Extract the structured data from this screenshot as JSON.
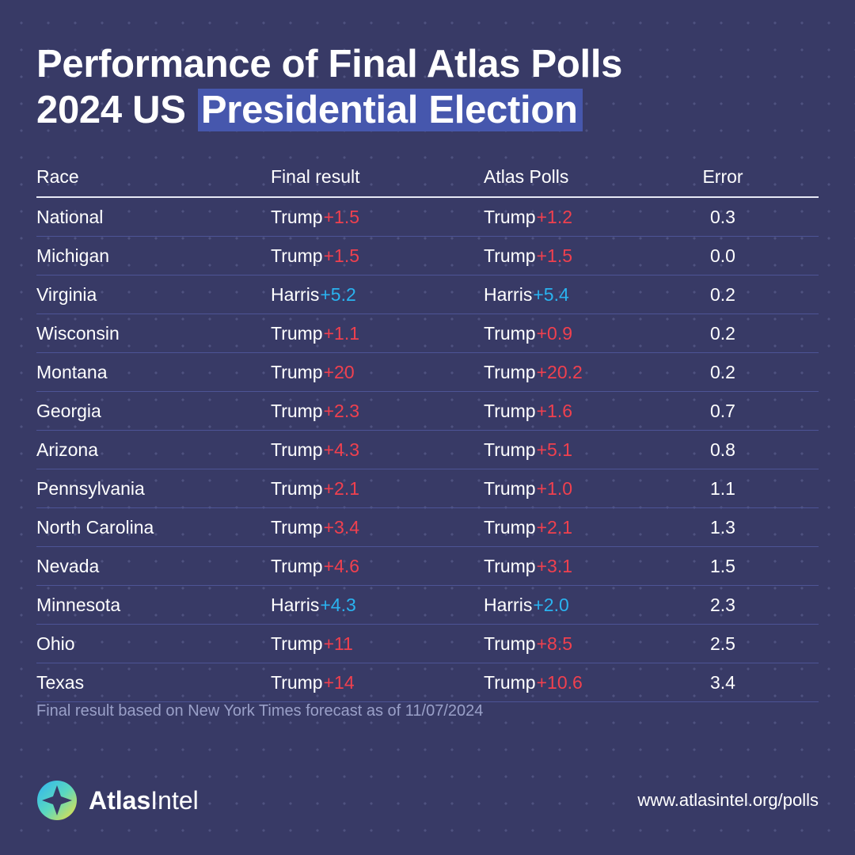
{
  "title": {
    "line1": "Performance of Final Atlas Polls",
    "line2_prefix": "2024 US",
    "line2_highlight": "Presidential Election"
  },
  "table": {
    "headers": {
      "race": "Race",
      "final": "Final result",
      "atlas": "Atlas Polls",
      "error": "Error"
    },
    "rows": [
      {
        "race": "National",
        "final_cand": "Trump",
        "final_margin": "+1.5",
        "atlas_cand": "Trump",
        "atlas_margin": "+1.2",
        "error": "0.3"
      },
      {
        "race": "Michigan",
        "final_cand": "Trump",
        "final_margin": "+1.5",
        "atlas_cand": "Trump",
        "atlas_margin": "+1.5",
        "error": "0.0"
      },
      {
        "race": "Virginia",
        "final_cand": "Harris",
        "final_margin": "+5.2",
        "atlas_cand": "Harris",
        "atlas_margin": "+5.4",
        "error": "0.2"
      },
      {
        "race": "Wisconsin",
        "final_cand": "Trump",
        "final_margin": "+1.1",
        "atlas_cand": "Trump",
        "atlas_margin": "+0.9",
        "error": "0.2"
      },
      {
        "race": "Montana",
        "final_cand": "Trump",
        "final_margin": "+20",
        "atlas_cand": "Trump",
        "atlas_margin": "+20.2",
        "error": "0.2"
      },
      {
        "race": "Georgia",
        "final_cand": "Trump",
        "final_margin": "+2.3",
        "atlas_cand": "Trump",
        "atlas_margin": "+1.6",
        "error": "0.7"
      },
      {
        "race": "Arizona",
        "final_cand": "Trump",
        "final_margin": "+4.3",
        "atlas_cand": "Trump",
        "atlas_margin": "+5.1",
        "error": "0.8"
      },
      {
        "race": "Pennsylvania",
        "final_cand": "Trump",
        "final_margin": "+2.1",
        "atlas_cand": "Trump",
        "atlas_margin": "+1.0",
        "error": "1.1"
      },
      {
        "race": "North Carolina",
        "final_cand": "Trump",
        "final_margin": "+3.4",
        "atlas_cand": "Trump",
        "atlas_margin": "+2.1",
        "error": "1.3"
      },
      {
        "race": "Nevada",
        "final_cand": "Trump",
        "final_margin": "+4.6",
        "atlas_cand": "Trump",
        "atlas_margin": "+3.1",
        "error": "1.5"
      },
      {
        "race": "Minnesota",
        "final_cand": "Harris",
        "final_margin": "+4.3",
        "atlas_cand": "Harris",
        "atlas_margin": "+2.0",
        "error": "2.3"
      },
      {
        "race": "Ohio",
        "final_cand": "Trump",
        "final_margin": "+11",
        "atlas_cand": "Trump",
        "atlas_margin": "+8.5",
        "error": "2.5"
      },
      {
        "race": "Texas",
        "final_cand": "Trump",
        "final_margin": "+14",
        "atlas_cand": "Trump",
        "atlas_margin": "+10.6",
        "error": "3.4"
      }
    ]
  },
  "note": "Final result based on New York Times forecast as of 11/07/2024",
  "brand": {
    "name_bold": "Atlas",
    "name_regular": "Intel",
    "logo_icon": "atlasintel-compass-logo-icon"
  },
  "url": "www.atlasintel.org/polls",
  "colors": {
    "background": "#383a66",
    "title_highlight": "#4657ad",
    "trump": "#f0404e",
    "harris": "#2ab3f0",
    "note": "#9aa0c8"
  }
}
